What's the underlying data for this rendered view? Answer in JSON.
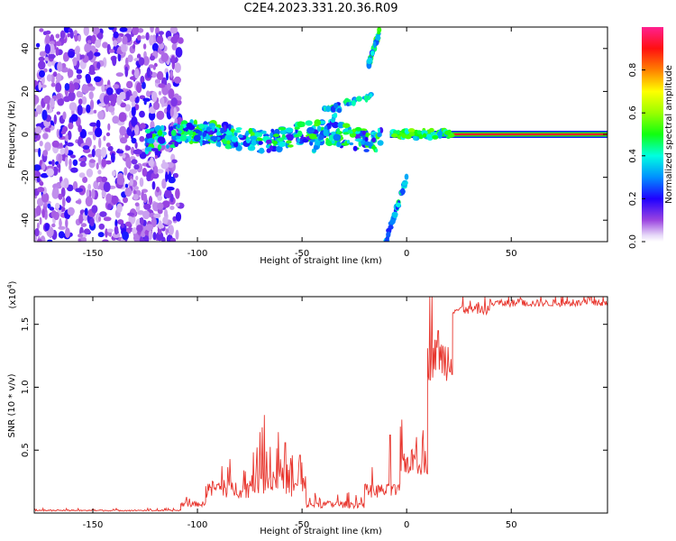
{
  "title": "C2E4.2023.331.20.36.R09",
  "chart_data": [
    {
      "type": "heatmap",
      "name": "spectrogram",
      "xlabel": "Height of straight line (km)",
      "ylabel": "Frequency (Hz)",
      "xlim": [
        -178,
        96
      ],
      "ylim": [
        -50,
        50
      ],
      "xticks": [
        -150,
        -100,
        -50,
        0,
        50
      ],
      "xtick_labels": [
        "-150",
        "-100",
        "-50",
        "0",
        "50"
      ],
      "yticks": [
        -40,
        -20,
        0,
        20,
        40
      ],
      "ytick_labels": [
        "-40",
        "-20",
        "0",
        "20",
        "40"
      ],
      "colorbar": {
        "label": "Normalized spectral amplitude",
        "range": [
          0,
          1
        ],
        "ticks": [
          0.0,
          0.2,
          0.4,
          0.6,
          0.8
        ],
        "tick_labels": [
          "0.0",
          "0.2",
          "0.4",
          "0.6",
          "0.8"
        ]
      },
      "features": [
        {
          "name": "noise-region",
          "x_range": [
            -178,
            -108
          ],
          "freq_range": [
            -50,
            50
          ],
          "amplitude": 0.12
        },
        {
          "name": "main-band",
          "x_range": [
            -125,
            -12
          ],
          "freq_center": -1,
          "amplitude": 0.45
        },
        {
          "name": "carrier-line",
          "x_range": [
            -8,
            96
          ],
          "freq": 0,
          "amplitude": 0.9
        },
        {
          "name": "rising-line-1",
          "points": [
            [
              -40,
              11
            ],
            [
              -17,
              18
            ]
          ],
          "amplitude": 0.35
        },
        {
          "name": "rising-line-2",
          "points": [
            [
              -45,
              -8
            ],
            [
              -32,
              12
            ]
          ],
          "amplitude": 0.3
        },
        {
          "name": "rising-line-3",
          "points": [
            [
              -18,
              33
            ],
            [
              -13,
              48
            ]
          ],
          "amplitude": 0.4
        },
        {
          "name": "descending-line",
          "points": [
            [
              -10,
              -50
            ],
            [
              0,
              -20
            ]
          ],
          "amplitude": 0.35
        }
      ]
    },
    {
      "type": "line",
      "name": "snr",
      "xlabel": "Height of straight line (km)",
      "ylabel": "SNR (10 * v/v)",
      "scale_label": "(x10",
      "scale_exponent": "4",
      "scale_close": ")",
      "xlim": [
        -178,
        96
      ],
      "ylim": [
        0,
        1.72
      ],
      "xticks": [
        -150,
        -100,
        -50,
        0,
        50
      ],
      "xtick_labels": [
        "-150",
        "-100",
        "-50",
        "0",
        "50"
      ],
      "yticks": [
        0.5,
        1.0,
        1.5
      ],
      "ytick_labels": [
        "0.5",
        "1.0",
        "1.5"
      ],
      "series_color": "#e8372f",
      "segments": [
        {
          "x": [
            -178,
            -108
          ],
          "base": 0.015,
          "noise": 0.015
        },
        {
          "x": [
            -108,
            -96
          ],
          "base": 0.05,
          "noise": 0.06
        },
        {
          "x": [
            -96,
            -75
          ],
          "base": 0.12,
          "noise": 0.2
        },
        {
          "x": [
            -75,
            -55
          ],
          "base": 0.15,
          "noise": 0.35
        },
        {
          "x": [
            -55,
            -48
          ],
          "base": 0.1,
          "noise": 0.3
        },
        {
          "x": [
            -48,
            -20
          ],
          "base": 0.04,
          "noise": 0.08
        },
        {
          "x": [
            -20,
            -3
          ],
          "base": 0.12,
          "noise": 0.16
        },
        {
          "x": [
            -3,
            10
          ],
          "base": 0.3,
          "noise": 0.3
        },
        {
          "x": [
            10,
            22
          ],
          "base": 1.05,
          "noise": 0.5
        },
        {
          "x": [
            22,
            40
          ],
          "base": 1.58,
          "noise": 0.1
        },
        {
          "x": [
            40,
            96
          ],
          "base": 1.64,
          "noise": 0.08
        }
      ],
      "peaks": [
        [
          -68,
          0.78
        ],
        [
          -58,
          0.56
        ],
        [
          -51,
          0.46
        ],
        [
          -8,
          0.62
        ],
        [
          15,
          1.45
        ],
        [
          40,
          1.7
        ],
        [
          55,
          1.7
        ]
      ]
    }
  ]
}
